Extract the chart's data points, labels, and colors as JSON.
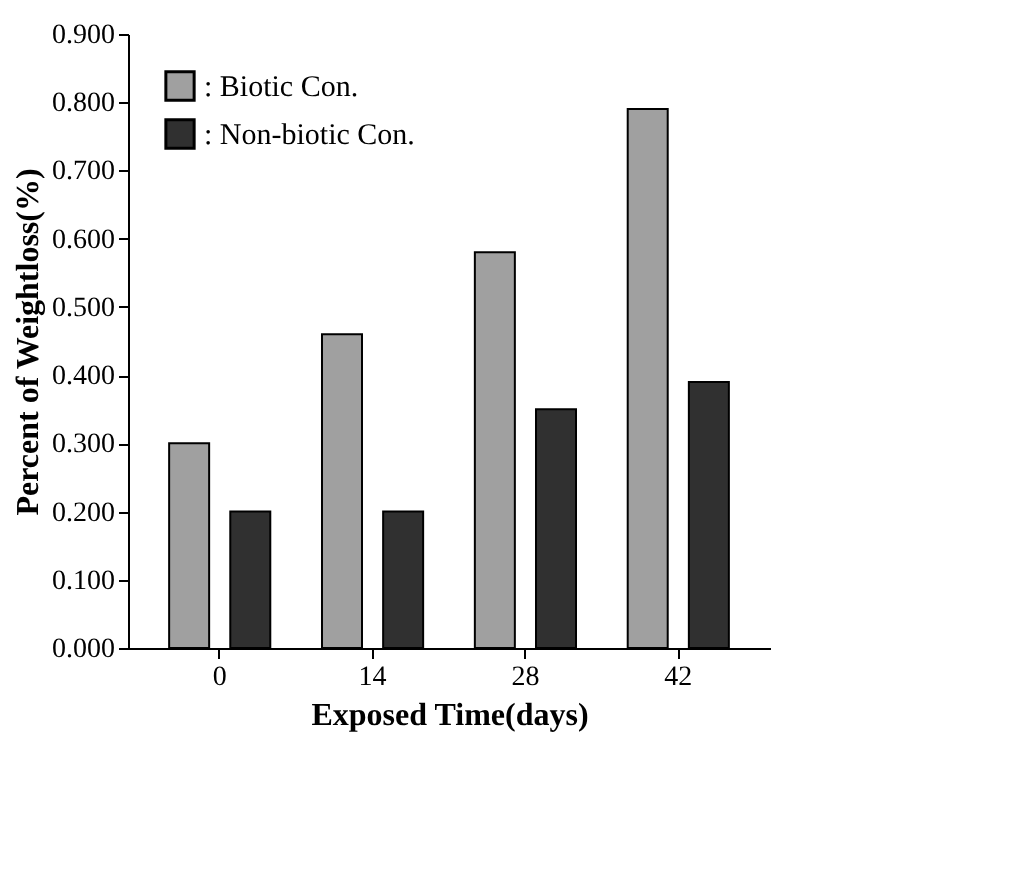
{
  "chart_data": {
    "type": "bar",
    "categories": [
      "0",
      "14",
      "28",
      "42"
    ],
    "series": [
      {
        "name": ": Biotic Con.",
        "color": "#a0a0a0",
        "values": [
          0.3,
          0.46,
          0.58,
          0.79
        ]
      },
      {
        "name": ": Non-biotic Con.",
        "color": "#303030",
        "values": [
          0.2,
          0.2,
          0.35,
          0.39
        ]
      }
    ],
    "xlabel": "Exposed Time(days)",
    "ylabel": "Percent of Weightloss(%)",
    "ylim": [
      0,
      0.9
    ],
    "yticks": [
      {
        "value": 0,
        "label": "0.000"
      },
      {
        "value": 0.1,
        "label": "0.100"
      },
      {
        "value": 0.2,
        "label": "0.200"
      },
      {
        "value": 0.3,
        "label": "0.300"
      },
      {
        "value": 0.4,
        "label": "0.400"
      },
      {
        "value": 0.5,
        "label": "0.500"
      },
      {
        "value": 0.6,
        "label": "0.600"
      },
      {
        "value": 0.7,
        "label": "0.700"
      },
      {
        "value": 0.8,
        "label": "0.800"
      },
      {
        "value": 0.9,
        "label": "0.900"
      }
    ],
    "legend": "top left",
    "grid": false
  }
}
